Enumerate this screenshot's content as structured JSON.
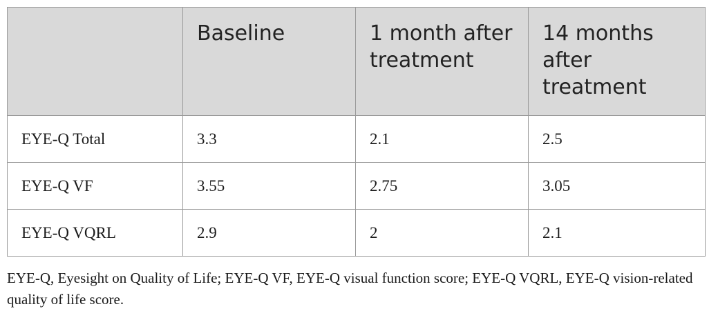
{
  "table": {
    "headers": [
      "",
      "Baseline",
      "1 month after treatment",
      "14 months after treatment"
    ],
    "rows": [
      [
        "EYE-Q Total",
        "3.3",
        "2.1",
        "2.5"
      ],
      [
        "EYE-Q VF",
        "3.55",
        "2.75",
        "3.05"
      ],
      [
        "EYE-Q VQRL",
        "2.9",
        "2",
        "2.1"
      ]
    ]
  },
  "footnote": "EYE-Q, Eyesight on Quality of Life; EYE-Q VF, EYE-Q visual function score; EYE-Q VQRL, EYE-Q vision-related quality of life score."
}
